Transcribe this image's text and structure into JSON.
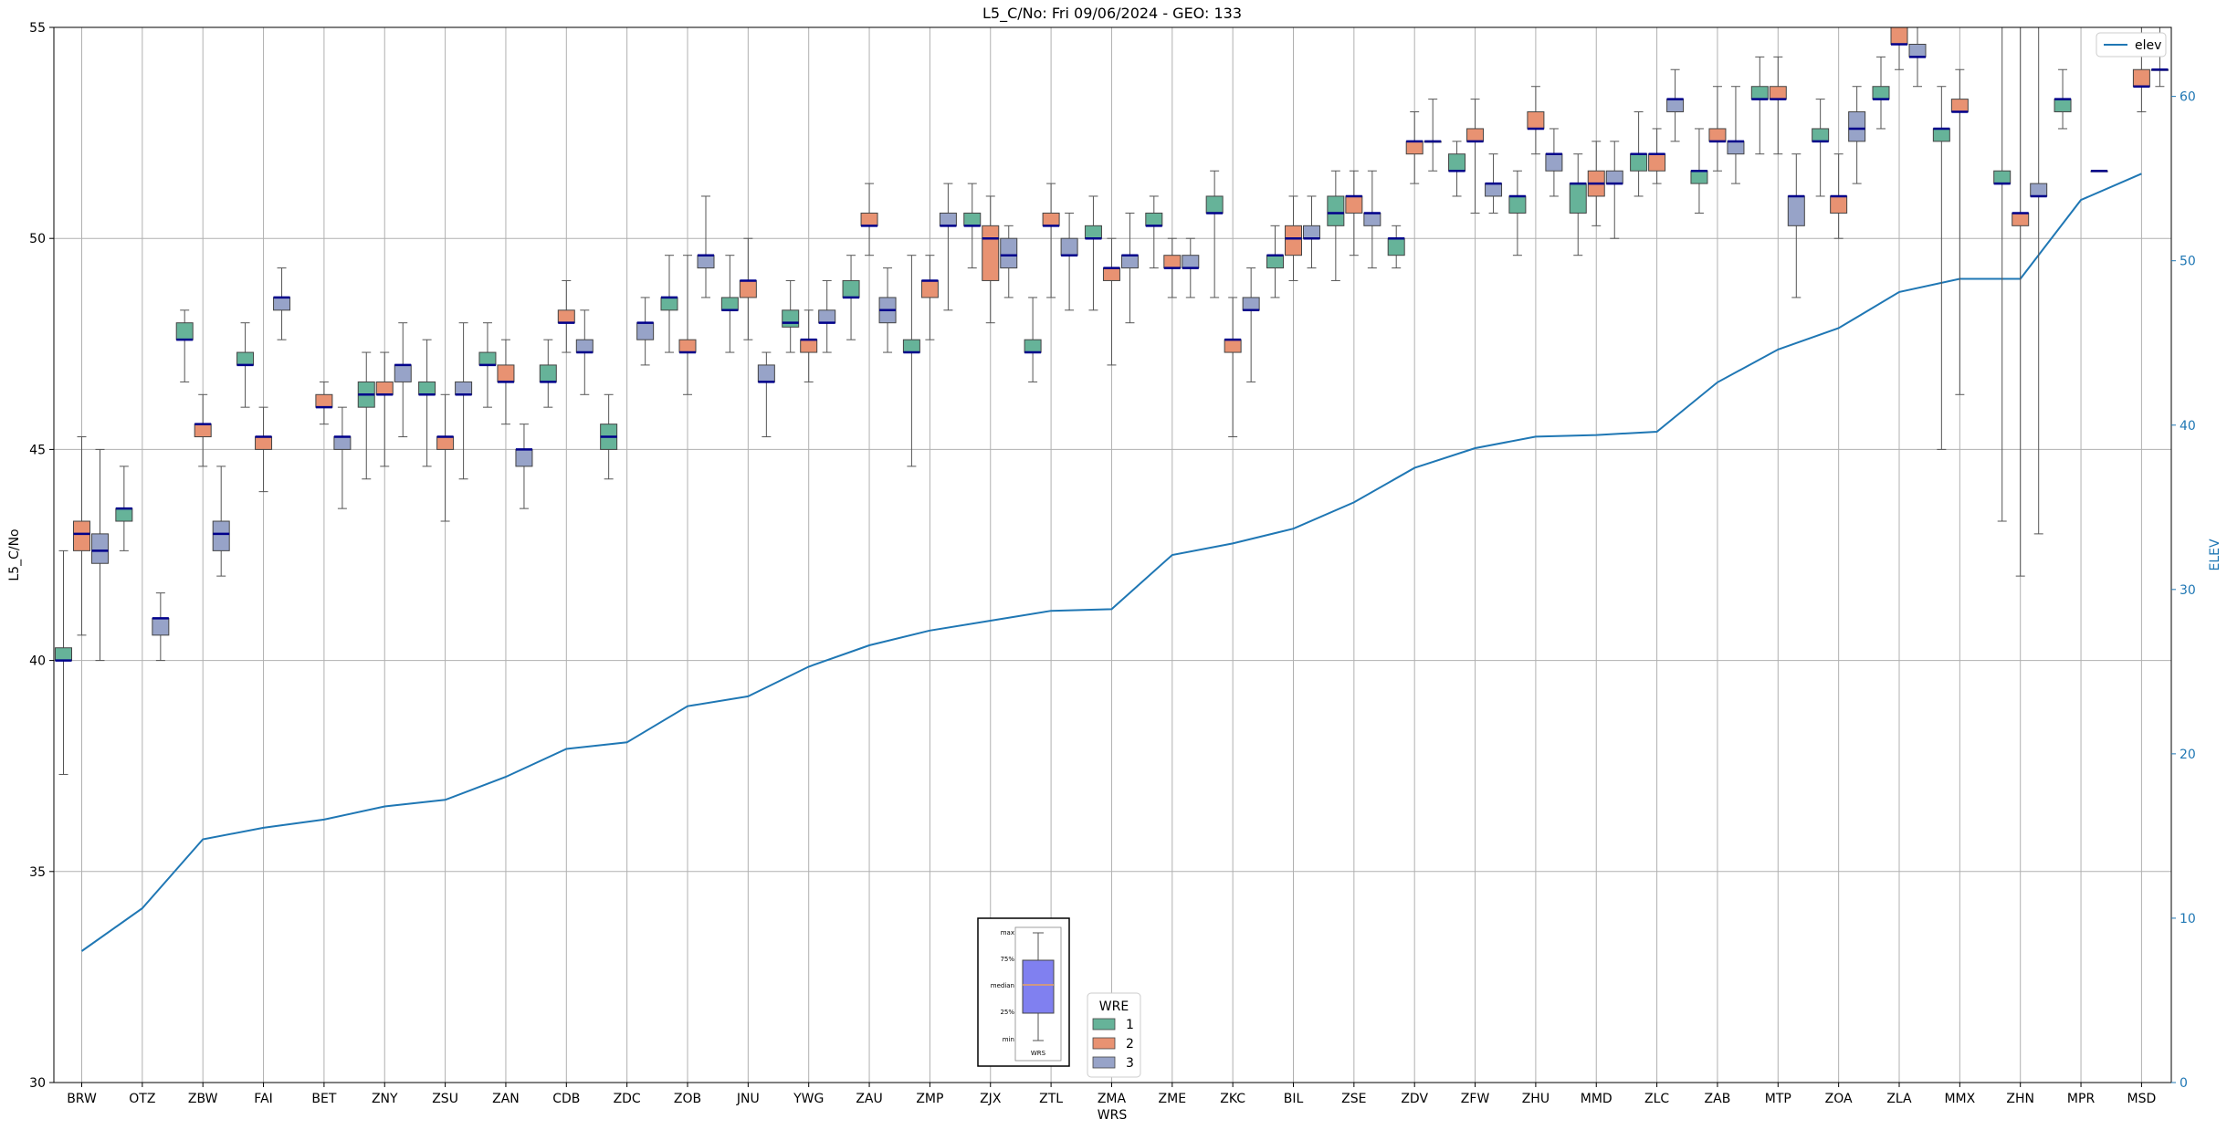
{
  "chart_data": {
    "type": "box",
    "title": "L5_C/No: Fri 09/06/2024 - GEO: 133",
    "xlabel": "WRS",
    "ylabel": "L5_C/No",
    "y2label": "ELEV",
    "ylim": [
      30,
      55
    ],
    "y2lim": [
      0,
      64.2
    ],
    "yticks": [
      "30",
      "35",
      "40",
      "45",
      "50",
      "55"
    ],
    "y2ticks": [
      "0",
      "10",
      "20",
      "30",
      "40",
      "50",
      "60"
    ],
    "grid": true,
    "categories": [
      "BRW",
      "OTZ",
      "ZBW",
      "FAI",
      "BET",
      "ZNY",
      "ZSU",
      "ZAN",
      "CDB",
      "ZDC",
      "ZOB",
      "JNU",
      "YWG",
      "ZAU",
      "ZMP",
      "ZJX",
      "ZTL",
      "ZMA",
      "ZME",
      "ZKC",
      "BIL",
      "ZSE",
      "ZDV",
      "ZFW",
      "ZHU",
      "MMD",
      "ZLC",
      "ZAB",
      "MTP",
      "ZOA",
      "ZLA",
      "MMX",
      "ZHN",
      "MPR",
      "MSD"
    ],
    "legend": {
      "title": "WRE",
      "placement": "bottom-center",
      "items": [
        {
          "label": "1",
          "color": "#66b399"
        },
        {
          "label": "2",
          "color": "#e89272"
        },
        {
          "label": "3",
          "color": "#97a3c8"
        }
      ]
    },
    "box_key": {
      "labels": [
        "max",
        "75%",
        "median",
        "25%",
        "min"
      ],
      "xlabel": "WRS"
    },
    "line_legend": {
      "label": "elev",
      "placement": "top-right",
      "color": "#1f77b4"
    },
    "elevation": [
      8.0,
      10.6,
      14.8,
      15.5,
      16.0,
      16.8,
      17.2,
      18.6,
      20.3,
      20.7,
      22.9,
      23.5,
      25.3,
      26.6,
      27.5,
      28.1,
      28.7,
      28.8,
      32.1,
      32.8,
      33.7,
      35.3,
      37.4,
      38.6,
      39.3,
      39.4,
      39.6,
      42.6,
      44.6,
      45.9,
      48.1,
      48.9,
      48.9,
      53.7,
      55.3
    ],
    "series": [
      {
        "name": "1",
        "color": "#66b399",
        "boxes": [
          [
            0,
            37.3,
            40.0,
            40.0,
            40.3,
            42.6
          ],
          [
            1,
            42.6,
            43.3,
            43.6,
            43.6,
            44.6
          ],
          [
            2,
            46.6,
            47.6,
            47.6,
            48.0,
            48.3
          ],
          [
            3,
            46.0,
            47.0,
            47.0,
            47.3,
            48.0
          ],
          [
            5,
            44.3,
            46.0,
            46.3,
            46.6,
            47.3
          ],
          [
            6,
            44.6,
            46.3,
            46.3,
            46.6,
            47.6
          ],
          [
            7,
            46.0,
            47.0,
            47.0,
            47.3,
            48.0
          ],
          [
            8,
            46.0,
            46.6,
            46.6,
            47.0,
            47.6
          ],
          [
            9,
            44.3,
            45.0,
            45.3,
            45.6,
            46.3
          ],
          [
            10,
            47.3,
            48.3,
            48.6,
            48.6,
            49.6
          ],
          [
            11,
            47.3,
            48.3,
            48.3,
            48.6,
            49.6
          ],
          [
            12,
            47.3,
            47.9,
            48.0,
            48.3,
            49.0
          ],
          [
            13,
            47.6,
            48.6,
            48.6,
            49.0,
            49.6
          ],
          [
            14,
            44.6,
            47.3,
            47.3,
            47.6,
            49.6
          ],
          [
            15,
            49.3,
            50.3,
            50.3,
            50.6,
            51.3
          ],
          [
            16,
            46.6,
            47.3,
            47.3,
            47.6,
            48.6
          ],
          [
            17,
            48.3,
            50.0,
            50.0,
            50.3,
            51.0
          ],
          [
            18,
            49.3,
            50.3,
            50.3,
            50.6,
            51.0
          ],
          [
            19,
            48.6,
            50.6,
            50.6,
            51.0,
            51.6
          ],
          [
            20,
            48.6,
            49.3,
            49.6,
            49.6,
            50.3
          ],
          [
            21,
            49.0,
            50.3,
            50.6,
            51.0,
            51.6
          ],
          [
            22,
            49.3,
            49.6,
            50.0,
            50.0,
            50.3
          ],
          [
            23,
            51.0,
            51.6,
            51.6,
            52.0,
            52.3
          ],
          [
            24,
            49.6,
            50.6,
            51.0,
            51.0,
            51.6
          ],
          [
            25,
            49.6,
            50.6,
            51.3,
            51.3,
            52.0
          ],
          [
            26,
            51.0,
            51.6,
            52.0,
            52.0,
            53.0
          ],
          [
            27,
            50.6,
            51.3,
            51.6,
            51.6,
            52.6
          ],
          [
            28,
            52.0,
            53.3,
            53.3,
            53.6,
            54.3
          ],
          [
            29,
            51.0,
            52.3,
            52.3,
            52.6,
            53.3
          ],
          [
            30,
            52.6,
            53.3,
            53.3,
            53.6,
            54.3
          ],
          [
            31,
            45.0,
            52.3,
            52.6,
            52.6,
            53.6
          ],
          [
            32,
            43.3,
            51.3,
            51.3,
            51.6,
            55.0
          ],
          [
            33,
            52.6,
            53.0,
            53.3,
            53.3,
            54.0
          ]
        ]
      },
      {
        "name": "2",
        "color": "#e89272",
        "boxes": [
          [
            0,
            40.6,
            42.6,
            43.0,
            43.3,
            45.3
          ],
          [
            2,
            44.6,
            45.3,
            45.6,
            45.6,
            46.3
          ],
          [
            3,
            44.0,
            45.0,
            45.3,
            45.3,
            46.0
          ],
          [
            4,
            45.6,
            46.0,
            46.0,
            46.3,
            46.6
          ],
          [
            5,
            44.6,
            46.3,
            46.3,
            46.6,
            47.3
          ],
          [
            6,
            43.3,
            45.0,
            45.3,
            45.3,
            46.3
          ],
          [
            7,
            45.6,
            46.6,
            46.6,
            47.0,
            47.6
          ],
          [
            8,
            47.3,
            48.0,
            48.0,
            48.3,
            49.0
          ],
          [
            10,
            46.3,
            47.3,
            47.3,
            47.6,
            49.6
          ],
          [
            11,
            47.6,
            48.6,
            49.0,
            49.0,
            50.0
          ],
          [
            12,
            46.6,
            47.3,
            47.6,
            47.6,
            48.3
          ],
          [
            13,
            49.6,
            50.3,
            50.3,
            50.6,
            51.3
          ],
          [
            14,
            47.6,
            48.6,
            49.0,
            49.0,
            49.6
          ],
          [
            15,
            48.0,
            49.0,
            50.0,
            50.3,
            51.0
          ],
          [
            16,
            48.6,
            50.3,
            50.3,
            50.6,
            51.3
          ],
          [
            17,
            47.0,
            49.0,
            49.3,
            49.3,
            50.0
          ],
          [
            18,
            48.6,
            49.3,
            49.3,
            49.6,
            50.0
          ],
          [
            19,
            45.3,
            47.3,
            47.6,
            47.6,
            48.6
          ],
          [
            20,
            49.0,
            49.6,
            50.0,
            50.3,
            51.0
          ],
          [
            21,
            49.6,
            50.6,
            51.0,
            51.0,
            51.6
          ],
          [
            22,
            51.3,
            52.0,
            52.3,
            52.3,
            53.0
          ],
          [
            23,
            50.6,
            52.3,
            52.3,
            52.6,
            53.3
          ],
          [
            24,
            52.0,
            52.6,
            52.6,
            53.0,
            53.6
          ],
          [
            25,
            50.3,
            51.0,
            51.3,
            51.6,
            52.3
          ],
          [
            26,
            51.3,
            51.6,
            52.0,
            52.0,
            52.6
          ],
          [
            27,
            51.6,
            52.3,
            52.3,
            52.6,
            53.6
          ],
          [
            28,
            52.0,
            53.3,
            53.3,
            53.6,
            54.3
          ],
          [
            29,
            50.0,
            50.6,
            51.0,
            51.0,
            52.0
          ],
          [
            30,
            54.0,
            54.6,
            54.6,
            55.0,
            55.0
          ],
          [
            31,
            46.3,
            53.0,
            53.0,
            53.3,
            54.0
          ],
          [
            32,
            42.0,
            50.3,
            50.6,
            50.6,
            55.0
          ],
          [
            34,
            53.0,
            53.6,
            53.6,
            54.0,
            55.0
          ]
        ]
      },
      {
        "name": "3",
        "color": "#97a3c8",
        "boxes": [
          [
            0,
            40.0,
            42.3,
            42.6,
            43.0,
            45.0
          ],
          [
            1,
            40.0,
            40.6,
            41.0,
            41.0,
            41.6
          ],
          [
            2,
            42.0,
            42.6,
            43.0,
            43.3,
            44.6
          ],
          [
            3,
            47.6,
            48.3,
            48.6,
            48.6,
            49.3
          ],
          [
            4,
            43.6,
            45.0,
            45.3,
            45.3,
            46.0
          ],
          [
            5,
            45.3,
            46.6,
            47.0,
            47.0,
            48.0
          ],
          [
            6,
            44.3,
            46.3,
            46.3,
            46.6,
            48.0
          ],
          [
            7,
            43.6,
            44.6,
            45.0,
            45.0,
            45.6
          ],
          [
            8,
            46.3,
            47.3,
            47.3,
            47.6,
            48.3
          ],
          [
            9,
            47.0,
            47.6,
            48.0,
            48.0,
            48.6
          ],
          [
            10,
            48.6,
            49.3,
            49.6,
            49.6,
            51.0
          ],
          [
            11,
            45.3,
            46.6,
            46.6,
            47.0,
            47.3
          ],
          [
            12,
            47.3,
            48.0,
            48.0,
            48.3,
            49.0
          ],
          [
            13,
            47.3,
            48.0,
            48.3,
            48.6,
            49.3
          ],
          [
            14,
            48.3,
            50.3,
            50.3,
            50.6,
            51.3
          ],
          [
            15,
            48.6,
            49.3,
            49.6,
            50.0,
            50.3
          ],
          [
            16,
            48.3,
            49.6,
            49.6,
            50.0,
            50.6
          ],
          [
            17,
            48.0,
            49.3,
            49.6,
            49.6,
            50.6
          ],
          [
            18,
            48.6,
            49.3,
            49.3,
            49.6,
            50.0
          ],
          [
            19,
            46.6,
            48.3,
            48.3,
            48.6,
            49.3
          ],
          [
            20,
            49.3,
            50.0,
            50.0,
            50.3,
            51.0
          ],
          [
            21,
            49.3,
            50.3,
            50.6,
            50.6,
            51.6
          ],
          [
            22,
            51.6,
            52.3,
            52.3,
            52.3,
            53.3
          ],
          [
            23,
            50.6,
            51.0,
            51.3,
            51.3,
            52.0
          ],
          [
            24,
            51.0,
            51.6,
            52.0,
            52.0,
            52.6
          ],
          [
            25,
            50.0,
            51.3,
            51.3,
            51.6,
            52.3
          ],
          [
            26,
            52.3,
            53.0,
            53.3,
            53.3,
            54.0
          ],
          [
            27,
            51.3,
            52.0,
            52.3,
            52.3,
            53.6
          ],
          [
            28,
            48.6,
            50.3,
            51.0,
            51.0,
            52.0
          ],
          [
            29,
            51.3,
            52.3,
            52.6,
            53.0,
            53.6
          ],
          [
            30,
            53.6,
            54.3,
            54.3,
            54.6,
            55.0
          ],
          [
            32,
            43.0,
            51.0,
            51.0,
            51.3,
            55.0
          ],
          [
            33,
            51.6,
            51.6,
            51.6,
            51.6,
            51.6
          ],
          [
            34,
            53.6,
            54.0,
            54.0,
            54.0,
            55.0
          ]
        ]
      }
    ]
  }
}
